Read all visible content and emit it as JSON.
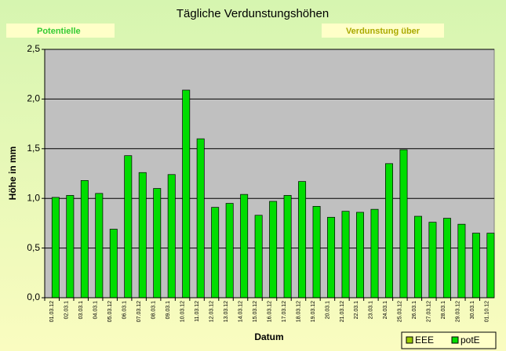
{
  "chart_data": {
    "type": "bar",
    "title": "Tägliche Verdunstungshöhen",
    "annotations": [
      "Potentielle",
      "Verdunstung über"
    ],
    "x_label": "Datum",
    "y_label": "Höhe in mm",
    "categories": [
      "01.03.12",
      "02.03.1",
      "03.03.1",
      "04.03.1",
      "05.03.12",
      "06.03.1",
      "07.03.12",
      "08.03.1",
      "09.03.1",
      "10.03.12",
      "11.03.12",
      "12.03.12",
      "13.03.12",
      "14.03.12",
      "15.03.12",
      "16.03.12",
      "17.03.12",
      "18.03.12",
      "19.03.12",
      "20.03.1",
      "21.03.12",
      "22.03.1",
      "23.03.1",
      "24.03.1",
      "25.03.12",
      "26.03.1",
      "27.03.12",
      "28.03.1",
      "29.03.12",
      "30.03.1",
      "01.10.12"
    ],
    "series": [
      {
        "name": "EEE",
        "color": "#99cc00",
        "values": [
          null,
          null,
          null,
          null,
          null,
          null,
          null,
          null,
          null,
          null,
          null,
          null,
          null,
          null,
          null,
          null,
          null,
          null,
          null,
          null,
          null,
          null,
          null,
          null,
          null,
          null,
          null,
          null,
          null,
          null,
          null
        ]
      },
      {
        "name": "potE",
        "color": "#00dd00",
        "values": [
          1.01,
          1.03,
          1.18,
          1.05,
          0.69,
          1.43,
          1.26,
          1.1,
          1.24,
          2.09,
          1.6,
          0.91,
          0.95,
          1.04,
          0.83,
          0.97,
          1.03,
          1.17,
          0.92,
          0.81,
          0.87,
          0.86,
          0.89,
          1.35,
          1.49,
          0.82,
          0.76,
          0.8,
          0.74,
          0.65,
          0.65
        ]
      }
    ],
    "ylim": [
      0,
      2.5
    ],
    "yticks": [
      {
        "value": 0,
        "label": "0,0"
      },
      {
        "value": 0.5,
        "label": "0,5"
      },
      {
        "value": 1,
        "label": "1,0"
      },
      {
        "value": 1.5,
        "label": "1,5"
      },
      {
        "value": 2,
        "label": "2,0"
      },
      {
        "value": 2.5,
        "label": "2,5"
      }
    ],
    "grid": true,
    "legend": "bottom-right"
  }
}
